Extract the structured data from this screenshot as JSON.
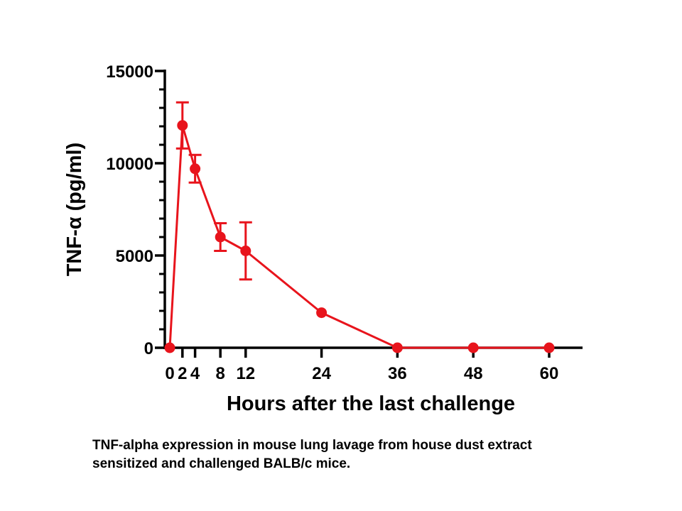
{
  "chart_data": {
    "type": "line",
    "x": [
      0,
      2,
      4,
      8,
      12,
      24,
      36,
      48,
      60
    ],
    "y": [
      0,
      12050,
      9700,
      6000,
      5250,
      1900,
      0,
      0,
      0
    ],
    "error": [
      0,
      1250,
      750,
      750,
      1550,
      0,
      0,
      0,
      0
    ],
    "xlabel": "Hours after the last challenge",
    "ylabel": "TNF-α (pg/ml)",
    "xlim": [
      0,
      65
    ],
    "ylim": [
      0,
      15000
    ],
    "xticks": [
      0,
      2,
      4,
      8,
      12,
      24,
      36,
      48,
      60
    ],
    "xtick_labels": [
      "0",
      "2",
      "4",
      "8",
      "12",
      "24",
      "36",
      "48",
      "60"
    ],
    "yticks": [
      0,
      5000,
      10000,
      15000
    ],
    "ytick_labels": [
      "0",
      "5000",
      "10000",
      "15000"
    ],
    "y_minor_step": 1000,
    "grid": false,
    "legend": "none",
    "color": "#e8141c"
  },
  "caption": {
    "line1": "TNF-alpha expression in mouse lung lavage from house dust extract",
    "line2": "sensitized and challenged BALB/c mice."
  }
}
